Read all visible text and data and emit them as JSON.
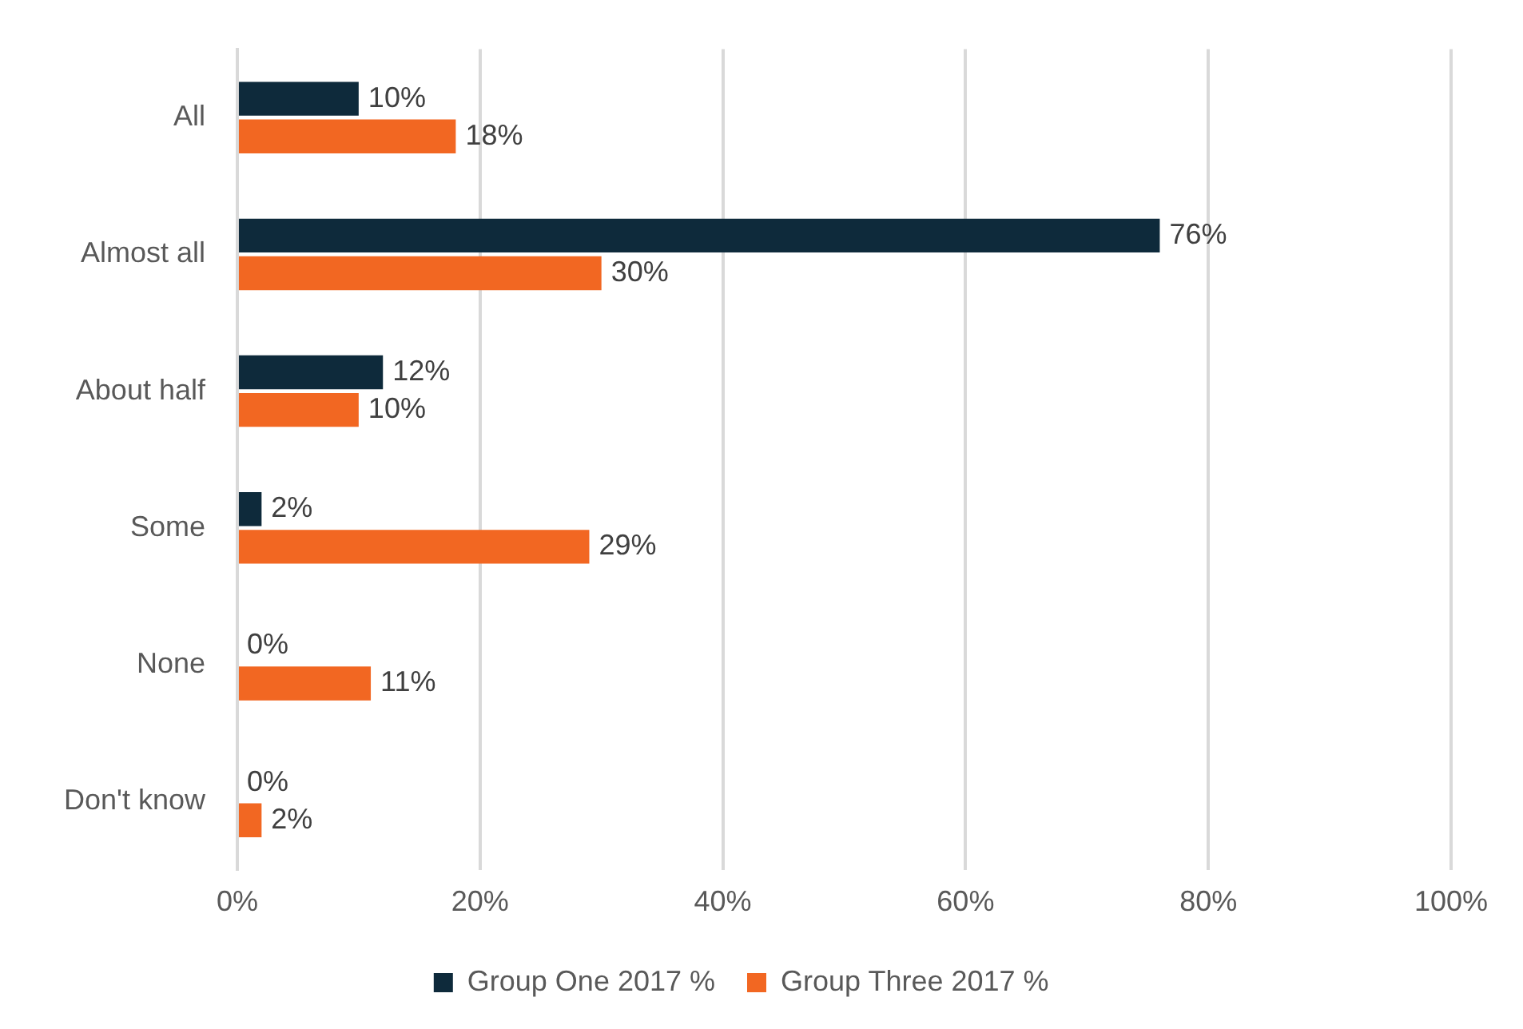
{
  "chart_data": {
    "type": "bar",
    "orientation": "horizontal",
    "categories": [
      "All",
      "Almost all",
      "About half",
      "Some",
      "None",
      "Don't know"
    ],
    "series": [
      {
        "name": "Group One 2017 %",
        "color": "#0e2a3b",
        "values": [
          10,
          76,
          12,
          2,
          0,
          0
        ],
        "value_labels": [
          "10%",
          "76%",
          "12%",
          "2%",
          "0%",
          "0%"
        ]
      },
      {
        "name": "Group Three 2017 %",
        "color": "#f26722",
        "values": [
          18,
          30,
          10,
          29,
          11,
          2
        ],
        "value_labels": [
          "18%",
          "30%",
          "10%",
          "29%",
          "11%",
          "2%"
        ]
      }
    ],
    "xlim": [
      0,
      100
    ],
    "xticks": [
      {
        "value": 0,
        "label": "0%"
      },
      {
        "value": 20,
        "label": "20%"
      },
      {
        "value": 40,
        "label": "40%"
      },
      {
        "value": 60,
        "label": "60%"
      },
      {
        "value": 80,
        "label": "80%"
      },
      {
        "value": 100,
        "label": "100%"
      }
    ],
    "grid": "x",
    "legend": "bottom"
  }
}
